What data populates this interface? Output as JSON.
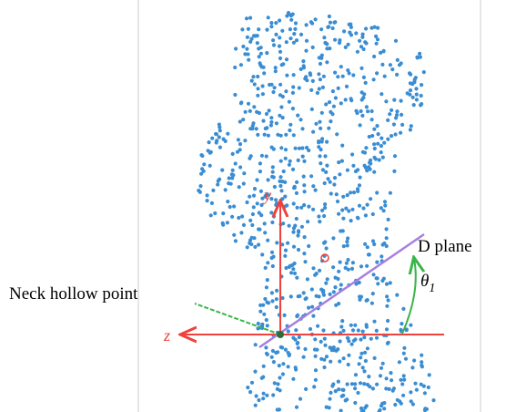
{
  "labels": {
    "y_axis": "y",
    "z_axis": "z",
    "d_plane": "D plane",
    "neck_hollow_point": "Neck hollow point",
    "theta": "θ",
    "theta_subscript": "1"
  }
}
